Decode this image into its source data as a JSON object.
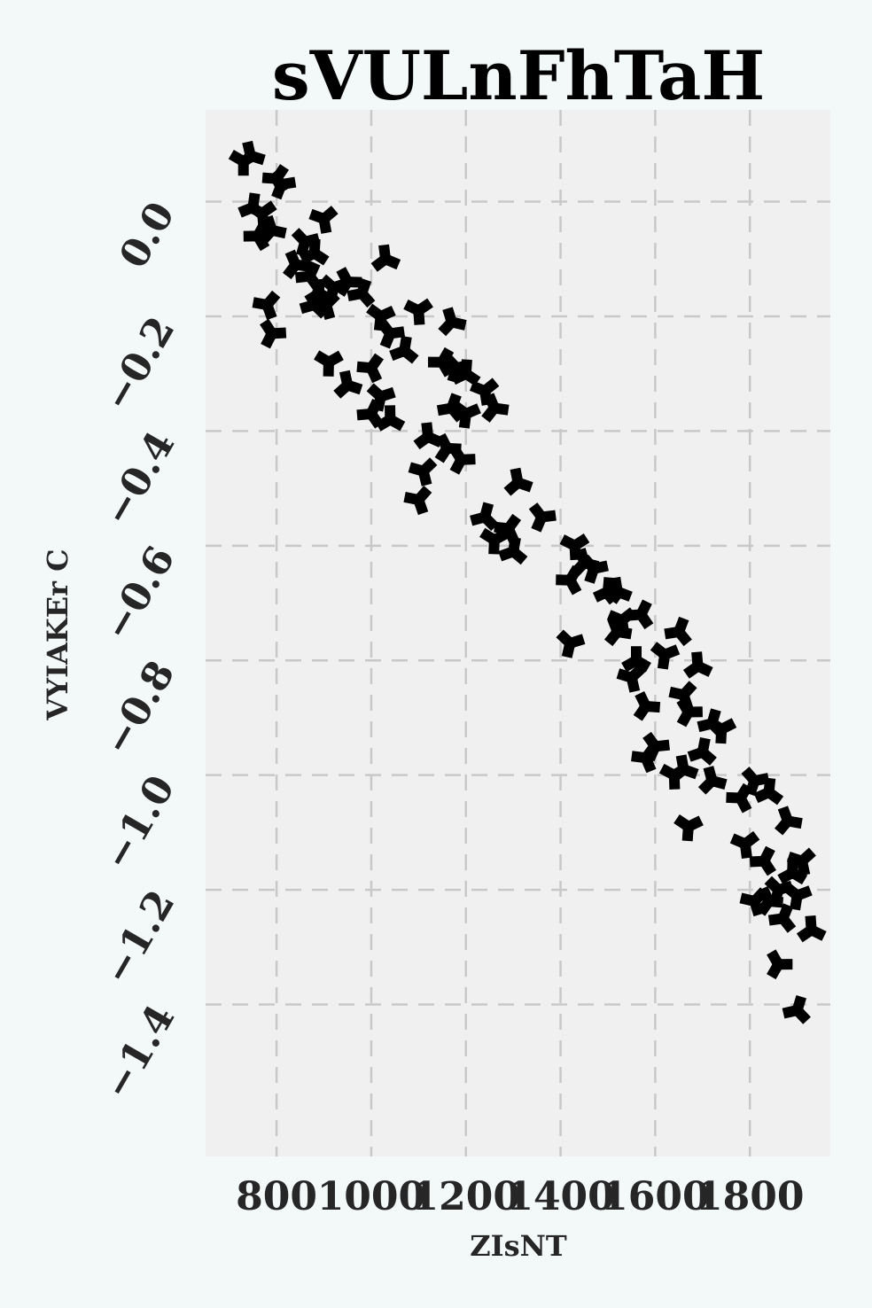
{
  "chart_data": {
    "type": "scatter",
    "title": "sVULnFhTaH",
    "xlabel": "ZIsNT",
    "ylabel": "VYIAKEr  C",
    "xlim": [
      650,
      1970
    ],
    "ylim": [
      -1.665,
      0.16
    ],
    "x_ticks": [
      800,
      1000,
      1200,
      1400,
      1600,
      1800
    ],
    "x_tick_labels": [
      "800",
      "1000",
      "1200",
      "1400",
      "1600",
      "1800"
    ],
    "y_ticks": [
      0.0,
      -0.2,
      -0.4,
      -0.6,
      -0.8,
      -1.0,
      -1.2,
      -1.4
    ],
    "y_tick_labels": [
      "0.0",
      "−0.2",
      "−0.4",
      "−0.6",
      "−0.8",
      "−1.0",
      "−1.2",
      "−1.4"
    ],
    "grid": true,
    "background": "#f0f0f0",
    "page_background": "#f3f8f8",
    "marker_color": "#000000",
    "marker": "tri-cross",
    "series": [
      {
        "x": [
          730,
          745,
          800,
          810,
          750,
          770,
          790,
          760,
          860,
          880,
          900,
          840,
          870,
          920,
          890,
          905,
          950,
          980,
          1020,
          1030,
          780,
          790,
          880,
          910,
          950,
          1000,
          1040,
          1070,
          1100,
          1170,
          1150,
          1180,
          1200,
          1240,
          1260,
          1000,
          1020,
          1040,
          1110,
          1160,
          1170,
          1200,
          1120,
          1100,
          1190,
          1240,
          1260,
          1310,
          1290,
          1360,
          1300,
          1430,
          1450,
          1420,
          1470,
          1500,
          1530,
          1520,
          1570,
          1420,
          1560,
          1550,
          1580,
          1650,
          1620,
          1690,
          1660,
          1670,
          1720,
          1740,
          1660,
          1580,
          1600,
          1700,
          1640,
          1720,
          1780,
          1810,
          1840,
          1790,
          1880,
          1830,
          1860,
          1890,
          1910,
          1840,
          1870,
          1900,
          1930,
          1810,
          1860,
          1900,
          1670,
          1520
        ],
        "y": [
          0.07,
          0.08,
          0.04,
          0.03,
          -0.01,
          -0.02,
          -0.05,
          -0.06,
          -0.07,
          -0.09,
          -0.03,
          -0.11,
          -0.13,
          -0.15,
          -0.16,
          -0.18,
          -0.14,
          -0.16,
          -0.2,
          -0.1,
          -0.18,
          -0.23,
          -0.18,
          -0.28,
          -0.32,
          -0.29,
          -0.23,
          -0.26,
          -0.19,
          -0.21,
          -0.28,
          -0.29,
          -0.3,
          -0.33,
          -0.36,
          -0.37,
          -0.34,
          -0.38,
          -0.47,
          -0.43,
          -0.36,
          -0.37,
          -0.41,
          -0.52,
          -0.45,
          -0.55,
          -0.59,
          -0.49,
          -0.57,
          -0.55,
          -0.61,
          -0.6,
          -0.63,
          -0.66,
          -0.64,
          -0.68,
          -0.73,
          -0.75,
          -0.72,
          -0.77,
          -0.8,
          -0.83,
          -0.88,
          -0.75,
          -0.79,
          -0.81,
          -0.86,
          -0.89,
          -0.91,
          -0.92,
          -0.99,
          -0.97,
          -0.95,
          -0.96,
          -1.0,
          -1.01,
          -1.04,
          -1.01,
          -1.03,
          -1.12,
          -1.08,
          -1.15,
          -1.2,
          -1.17,
          -1.15,
          -1.22,
          -1.25,
          -1.21,
          -1.27,
          -1.22,
          -1.33,
          -1.41,
          -1.09,
          -0.68
        ]
      }
    ]
  }
}
